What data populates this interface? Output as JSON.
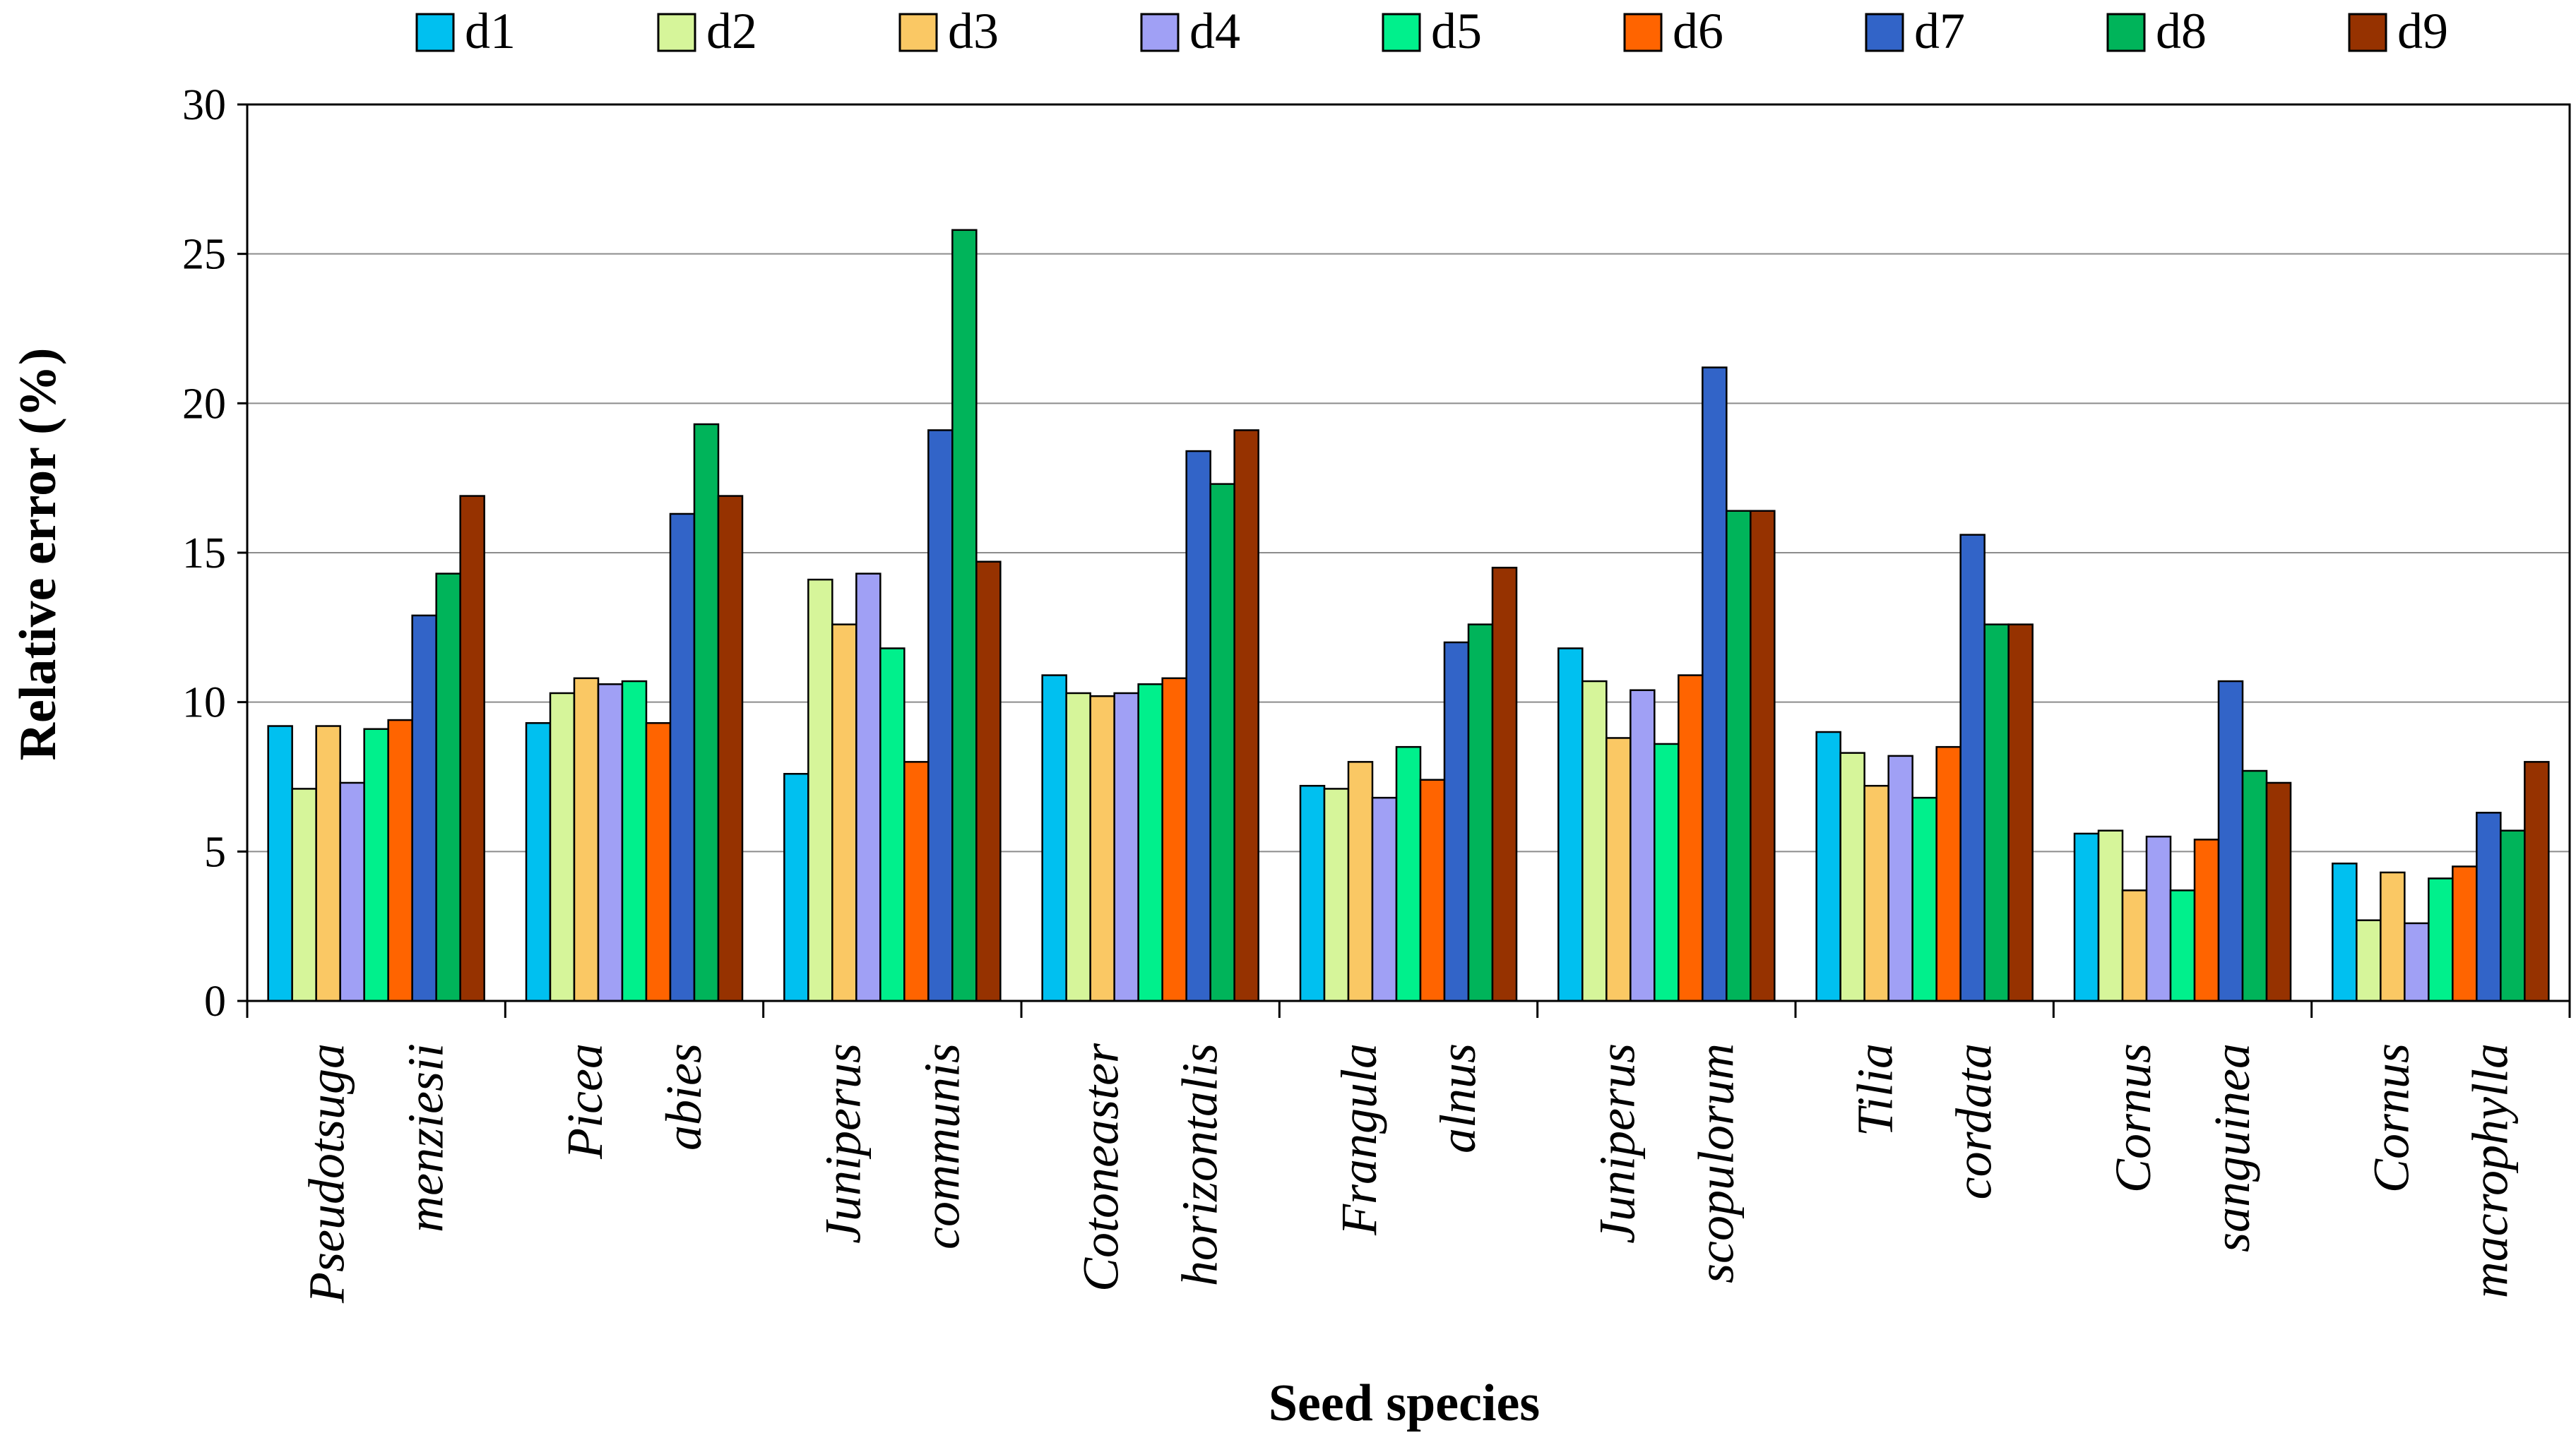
{
  "chart_data": {
    "type": "bar",
    "title": "",
    "xlabel": "Seed species",
    "ylabel": "Relative error (%)",
    "ylim": [
      0,
      30
    ],
    "yticks": [
      0,
      5,
      10,
      15,
      20,
      25,
      30
    ],
    "grid": true,
    "legend_position": "top",
    "categories": [
      [
        "Pseudotsuga",
        "menziesii"
      ],
      [
        "Picea",
        "abies"
      ],
      [
        "Juniperus",
        "communis"
      ],
      [
        "Cotoneaster",
        "horizontalis"
      ],
      [
        "Frangula",
        "alnus"
      ],
      [
        "Juniperus",
        "scopulorum"
      ],
      [
        "Tilia",
        "cordata"
      ],
      [
        "Cornus",
        "sanguinea"
      ],
      [
        "Cornus",
        "macrophylla"
      ]
    ],
    "series": [
      {
        "name": "d1",
        "color": "#00c0f0",
        "values": [
          9.2,
          9.3,
          7.6,
          10.9,
          7.2,
          11.8,
          9.0,
          5.6,
          4.6
        ]
      },
      {
        "name": "d2",
        "color": "#d6f59a",
        "values": [
          7.1,
          10.3,
          14.1,
          10.3,
          7.1,
          10.7,
          8.3,
          5.7,
          2.7
        ]
      },
      {
        "name": "d3",
        "color": "#fac864",
        "values": [
          9.2,
          10.8,
          12.6,
          10.2,
          8.0,
          8.8,
          7.2,
          3.7,
          4.3
        ]
      },
      {
        "name": "d4",
        "color": "#a0a0f5",
        "values": [
          7.3,
          10.6,
          14.3,
          10.3,
          6.8,
          10.4,
          8.2,
          5.5,
          2.6
        ]
      },
      {
        "name": "d5",
        "color": "#00f08c",
        "values": [
          9.1,
          10.7,
          11.8,
          10.6,
          8.5,
          8.6,
          6.8,
          3.7,
          4.1
        ]
      },
      {
        "name": "d6",
        "color": "#ff6400",
        "values": [
          9.4,
          9.3,
          8.0,
          10.8,
          7.4,
          10.9,
          8.5,
          5.4,
          4.5
        ]
      },
      {
        "name": "d7",
        "color": "#3264c8",
        "values": [
          12.9,
          16.3,
          19.1,
          18.4,
          12.0,
          21.2,
          15.6,
          10.7,
          6.3
        ]
      },
      {
        "name": "d8",
        "color": "#00b45a",
        "values": [
          14.3,
          19.3,
          25.8,
          17.3,
          12.6,
          16.4,
          12.6,
          7.7,
          5.7
        ]
      },
      {
        "name": "d9",
        "color": "#963200",
        "values": [
          16.9,
          16.9,
          14.7,
          19.1,
          14.5,
          16.4,
          12.6,
          7.3,
          8.0
        ]
      }
    ]
  }
}
